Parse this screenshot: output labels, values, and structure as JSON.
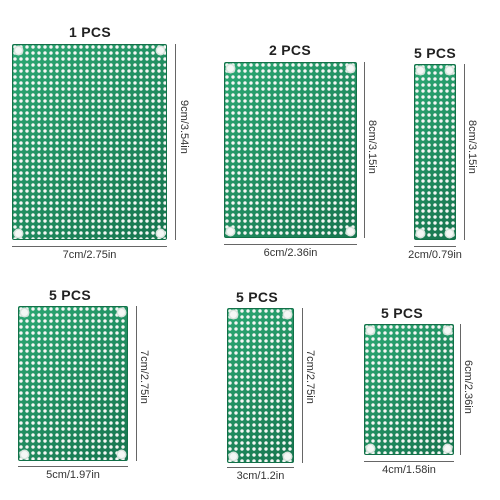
{
  "products": [
    {
      "id": "board-7x9",
      "count": "1 PCS",
      "width_label": "7cm/2.75in",
      "height_label": "9cm/3.54in"
    },
    {
      "id": "board-6x8",
      "count": "2 PCS",
      "width_label": "6cm/2.36in",
      "height_label": "8cm/3.15in"
    },
    {
      "id": "board-2x8",
      "count": "5 PCS",
      "width_label": "2cm/0.79in",
      "height_label": "8cm/3.15in"
    },
    {
      "id": "board-5x7",
      "count": "5 PCS",
      "width_label": "5cm/1.97in",
      "height_label": "7cm/2.75in"
    },
    {
      "id": "board-3x7",
      "count": "5 PCS",
      "width_label": "3cm/1.2in",
      "height_label": "7cm/2.75in"
    },
    {
      "id": "board-4x6",
      "count": "5 PCS",
      "width_label": "4cm/1.58in",
      "height_label": "6cm/2.36in"
    }
  ],
  "colors": {
    "board_green": "#1f8a5e",
    "pad_silver": "#f4f7f5",
    "text": "#222222",
    "background": "#ffffff"
  }
}
